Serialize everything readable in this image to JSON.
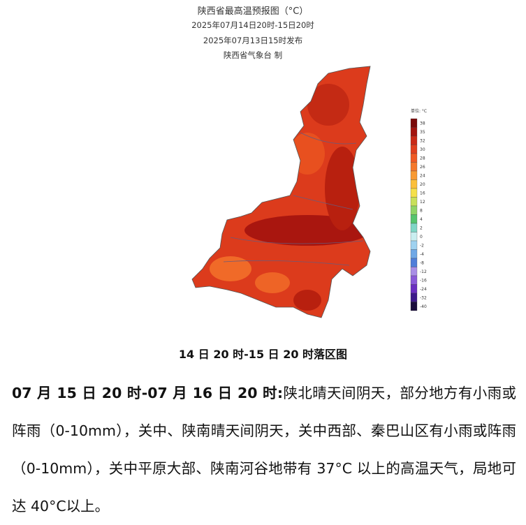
{
  "map": {
    "title": "陕西省最高温预报图（°C）",
    "period": "2025年07月14日20时-15日20时",
    "issued": "2025年07月13日15时发布",
    "producer": "陕西省气象台  制",
    "legend_title": "单位: °C",
    "legend": [
      {
        "label": "38",
        "color": "#7a0a0a"
      },
      {
        "label": "35",
        "color": "#a3140f"
      },
      {
        "label": "32",
        "color": "#c92a17"
      },
      {
        "label": "30",
        "color": "#e0401e"
      },
      {
        "label": "28",
        "color": "#f05a24"
      },
      {
        "label": "26",
        "color": "#f5782b"
      },
      {
        "label": "24",
        "color": "#f89a33"
      },
      {
        "label": "20",
        "color": "#fbbf3a"
      },
      {
        "label": "16",
        "color": "#f5e04a"
      },
      {
        "label": "12",
        "color": "#c8e05a"
      },
      {
        "label": "8",
        "color": "#8fd467"
      },
      {
        "label": "4",
        "color": "#56c46e"
      },
      {
        "label": "2",
        "color": "#7fd6c6"
      },
      {
        "label": "0",
        "color": "#c9eef0"
      },
      {
        "label": "-2",
        "color": "#9fd2f0"
      },
      {
        "label": "-4",
        "color": "#6fa8e6"
      },
      {
        "label": "-8",
        "color": "#4f7ed9"
      },
      {
        "label": "-12",
        "color": "#a98ee6"
      },
      {
        "label": "-16",
        "color": "#8a5ad8"
      },
      {
        "label": "-24",
        "color": "#6a2fc0"
      },
      {
        "label": "-32",
        "color": "#3d1a8a"
      },
      {
        "label": "-40",
        "color": "#1a0d3d"
      }
    ]
  },
  "caption": "14 日 20 时-15 日 20 时落区图",
  "paragraph": {
    "lead": "07 月 15 日 20 时-07 月 16 日 20 时:",
    "body": "陕北晴天间阴天，部分地方有小雨或阵雨（0-10mm），关中、陕南晴天间阴天，关中西部、秦巴山区有小雨或阵雨（0-10mm），关中平原大部、陕南河谷地带有 37°C 以上的高温天气，局地可达 40°C以上。"
  }
}
